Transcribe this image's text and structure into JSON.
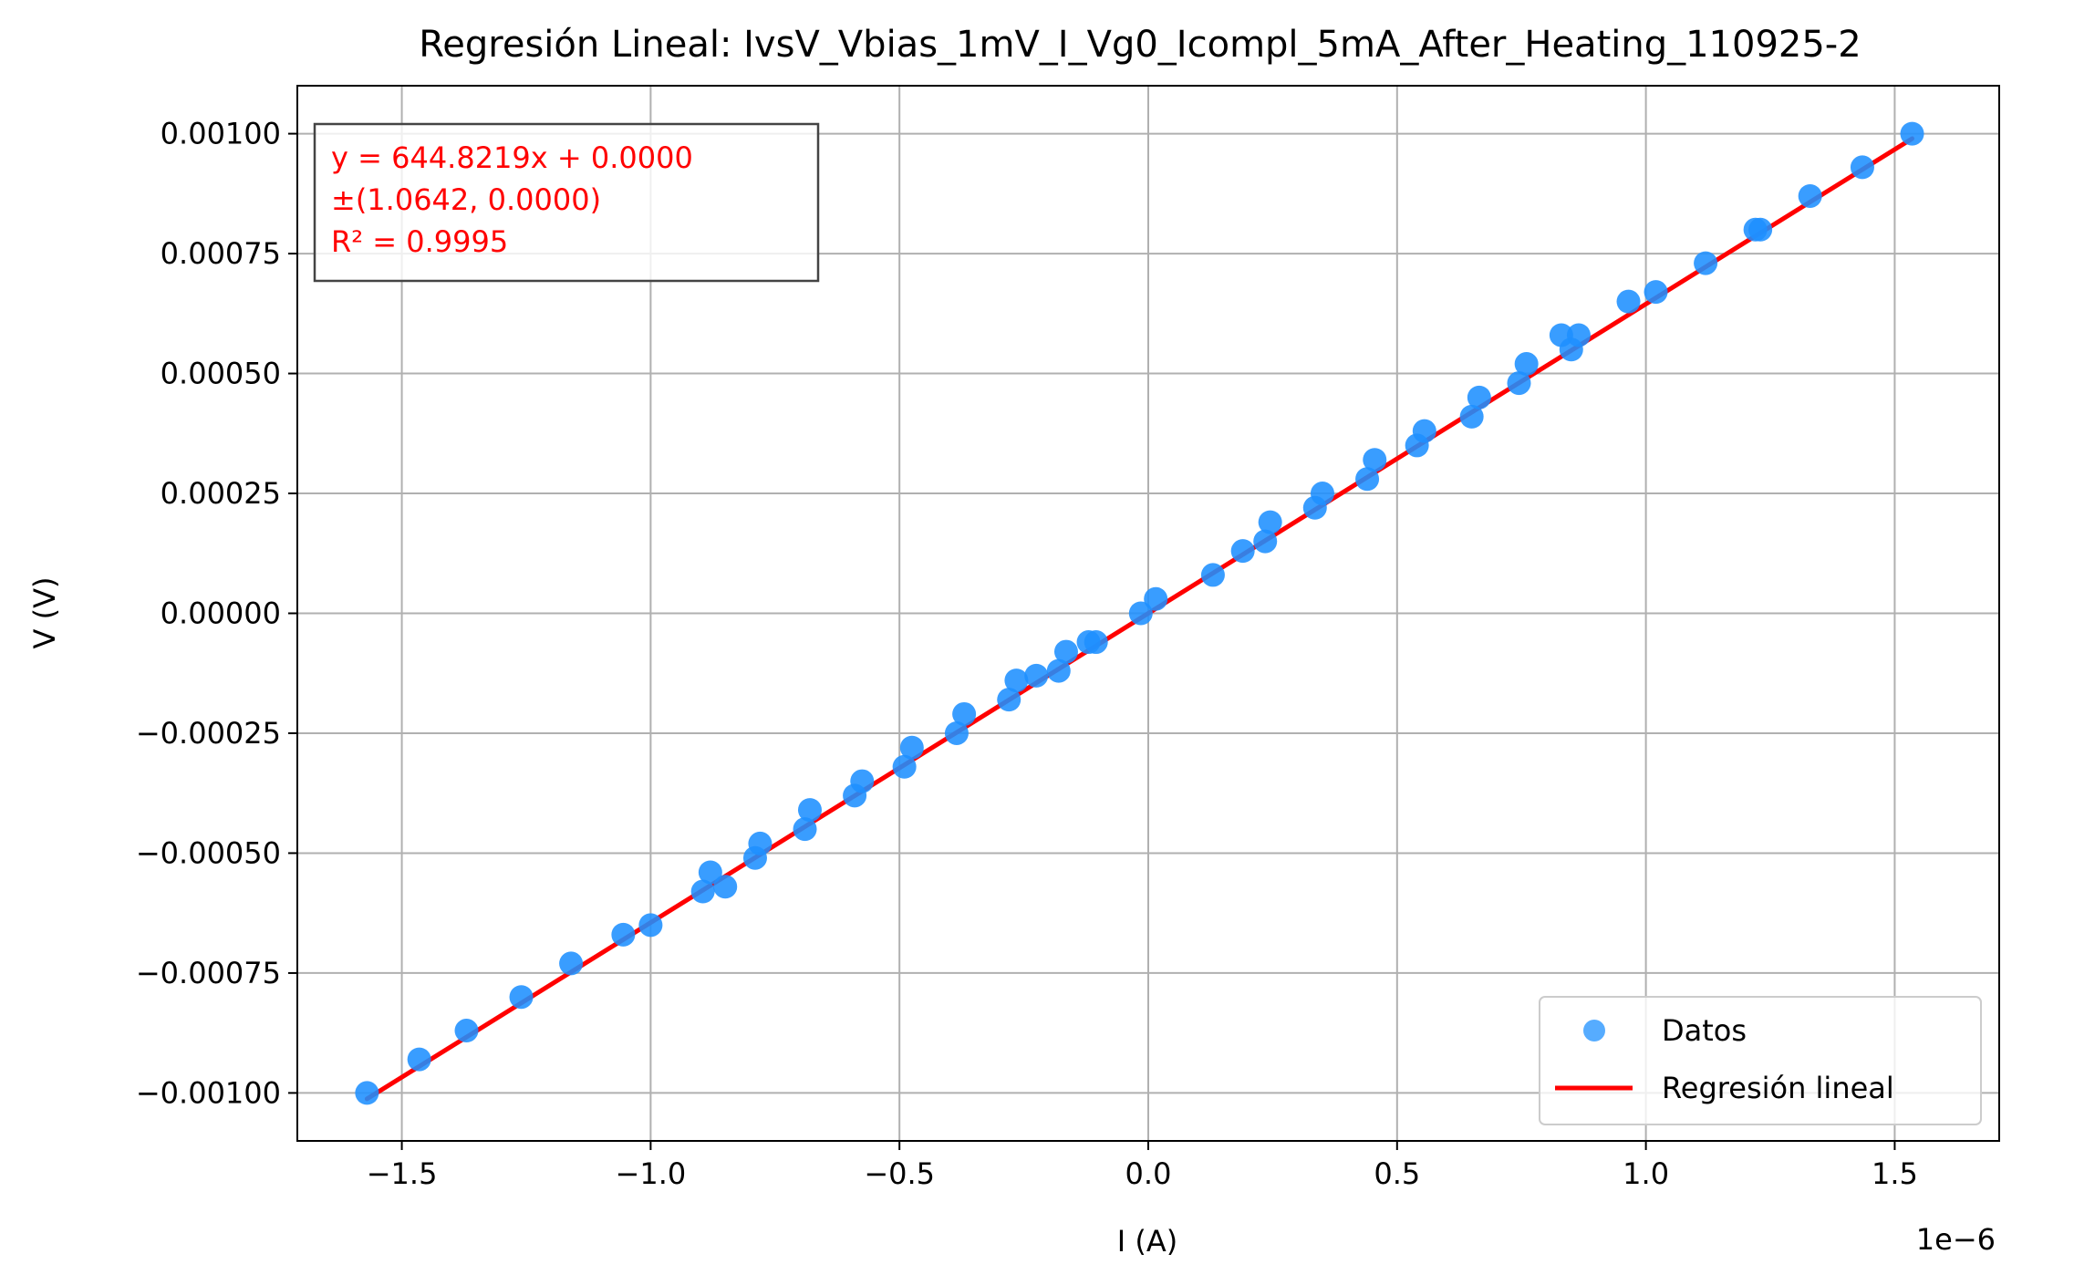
{
  "chart_data": {
    "type": "scatter",
    "title": "Regresión Lineal: IvsV_Vbias_1mV_I_Vg0_Icompl_5mA_After_Heating_110925-2",
    "xlabel": "I (A)",
    "ylabel": "V (V)",
    "x_offset_label": "1e−6",
    "xlim": [
      -1.71e-06,
      1.71e-06
    ],
    "ylim": [
      -0.0011,
      0.0011
    ],
    "xticks": [
      -1.5e-06,
      -1e-06,
      -5e-07,
      0,
      5e-07,
      1e-06,
      1.5e-06
    ],
    "xtick_labels": [
      "−1.5",
      "−1.0",
      "−0.5",
      "0.0",
      "0.5",
      "1.0",
      "1.5"
    ],
    "yticks": [
      -0.001,
      -0.00075,
      -0.0005,
      -0.00025,
      0,
      0.00025,
      0.0005,
      0.00075,
      0.001
    ],
    "ytick_labels": [
      "−0.00100",
      "−0.00075",
      "−0.00050",
      "−0.00025",
      "0.00000",
      "0.00025",
      "0.00050",
      "0.00075",
      "0.00100"
    ],
    "grid": true,
    "legend_position": "lower-right",
    "series": [
      {
        "name": "Datos",
        "color": "#1E90FF",
        "marker": "circle",
        "points": [
          [
            -1.57e-06,
            -0.001
          ],
          [
            -1.465e-06,
            -0.00093
          ],
          [
            -1.37e-06,
            -0.00087
          ],
          [
            -1.26e-06,
            -0.0008
          ],
          [
            -1.16e-06,
            -0.00073
          ],
          [
            -1.055e-06,
            -0.00067
          ],
          [
            -1e-06,
            -0.00065
          ],
          [
            -8.95e-07,
            -0.00058
          ],
          [
            -8.8e-07,
            -0.00054
          ],
          [
            -8.5e-07,
            -0.00057
          ],
          [
            -7.9e-07,
            -0.00051
          ],
          [
            -7.8e-07,
            -0.00048
          ],
          [
            -6.9e-07,
            -0.00045
          ],
          [
            -6.8e-07,
            -0.00041
          ],
          [
            -5.9e-07,
            -0.00038
          ],
          [
            -5.75e-07,
            -0.00035
          ],
          [
            -4.9e-07,
            -0.00032
          ],
          [
            -4.75e-07,
            -0.00028
          ],
          [
            -3.85e-07,
            -0.00025
          ],
          [
            -3.7e-07,
            -0.00021
          ],
          [
            -2.8e-07,
            -0.00018
          ],
          [
            -2.65e-07,
            -0.00014
          ],
          [
            -2.25e-07,
            -0.00013
          ],
          [
            -1.8e-07,
            -0.00012
          ],
          [
            -1.65e-07,
            -8e-05
          ],
          [
            -1.2e-07,
            -6e-05
          ],
          [
            -1.05e-07,
            -6e-05
          ],
          [
            -1.5e-08,
            0.0
          ],
          [
            1.5e-08,
            3e-05
          ],
          [
            1.3e-07,
            8e-05
          ],
          [
            1.9e-07,
            0.00013
          ],
          [
            2.35e-07,
            0.00015
          ],
          [
            2.45e-07,
            0.00019
          ],
          [
            3.35e-07,
            0.00022
          ],
          [
            3.5e-07,
            0.00025
          ],
          [
            4.4e-07,
            0.00028
          ],
          [
            4.55e-07,
            0.00032
          ],
          [
            5.4e-07,
            0.00035
          ],
          [
            5.55e-07,
            0.00038
          ],
          [
            6.5e-07,
            0.00041
          ],
          [
            6.65e-07,
            0.00045
          ],
          [
            7.45e-07,
            0.00048
          ],
          [
            7.6e-07,
            0.00052
          ],
          [
            8.3e-07,
            0.00058
          ],
          [
            8.5e-07,
            0.00055
          ],
          [
            8.65e-07,
            0.00058
          ],
          [
            9.65e-07,
            0.00065
          ],
          [
            1.02e-06,
            0.00067
          ],
          [
            1.12e-06,
            0.00073
          ],
          [
            1.22e-06,
            0.0008
          ],
          [
            1.23e-06,
            0.0008
          ],
          [
            1.33e-06,
            0.00087
          ],
          [
            1.435e-06,
            0.00093
          ],
          [
            1.535e-06,
            0.001
          ]
        ]
      },
      {
        "name": "Regresión lineal",
        "color": "#FF0000",
        "type": "line",
        "slope": 644.8219,
        "intercept": 0.0,
        "x_range": [
          -1.57e-06,
          1.535e-06
        ]
      }
    ],
    "annotation": {
      "lines": [
        "y = 644.8219x + 0.0000",
        "±(1.0642, 0.0000)",
        "R² = 0.9995"
      ],
      "color": "#FF0000"
    }
  }
}
